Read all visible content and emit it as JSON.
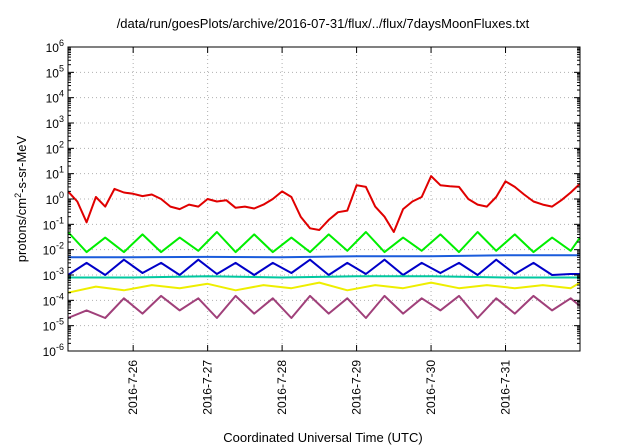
{
  "chart_data": {
    "type": "line",
    "title": "/data/run/goesPlots/archive/2016-07-31/flux/../flux/7daysMoonFluxes.txt",
    "xlabel": "Coordinated Universal Time (UTC)",
    "ylabel_parts": [
      "protons/cm",
      "2",
      "-s-sr-MeV"
    ],
    "y_scale": "log",
    "ylim": [
      1e-06,
      1000000.0
    ],
    "y_ticks": [
      {
        "base": "10",
        "exp": "-6",
        "value": 1e-06
      },
      {
        "base": "10",
        "exp": "-5",
        "value": 1e-05
      },
      {
        "base": "10",
        "exp": "-4",
        "value": 0.0001
      },
      {
        "base": "10",
        "exp": "-3",
        "value": 0.001
      },
      {
        "base": "10",
        "exp": "-2",
        "value": 0.01
      },
      {
        "base": "10",
        "exp": "-1",
        "value": 0.1
      },
      {
        "base": "10",
        "exp": "0",
        "value": 1
      },
      {
        "base": "10",
        "exp": "1",
        "value": 10
      },
      {
        "base": "10",
        "exp": "2",
        "value": 100
      },
      {
        "base": "10",
        "exp": "3",
        "value": 1000
      },
      {
        "base": "10",
        "exp": "4",
        "value": 10000
      },
      {
        "base": "10",
        "exp": "5",
        "value": 100000
      },
      {
        "base": "10",
        "exp": "6",
        "value": 1000000
      }
    ],
    "x_range": [
      "2016-07-25 03:00",
      "2016-08-01 00:00"
    ],
    "x_ticks": [
      {
        "label": "2016-7-26",
        "date": "2016-07-26 00:00"
      },
      {
        "label": "2016-7-27",
        "date": "2016-07-27 00:00"
      },
      {
        "label": "2016-7-28",
        "date": "2016-07-28 00:00"
      },
      {
        "label": "2016-7-29",
        "date": "2016-07-29 00:00"
      },
      {
        "label": "2016-7-30",
        "date": "2016-07-30 00:00"
      },
      {
        "label": "2016-7-31",
        "date": "2016-07-31 00:00"
      }
    ],
    "grid": true,
    "legend": "none",
    "series": [
      {
        "color": "#e00000",
        "x": [
          "2016-07-25 03:00",
          "2016-07-25 06:00",
          "2016-07-25 09:00",
          "2016-07-25 12:00",
          "2016-07-25 15:00",
          "2016-07-25 18:00",
          "2016-07-25 21:00",
          "2016-07-26 00:00",
          "2016-07-26 03:00",
          "2016-07-26 06:00",
          "2016-07-26 09:00",
          "2016-07-26 12:00",
          "2016-07-26 15:00",
          "2016-07-26 18:00",
          "2016-07-26 21:00",
          "2016-07-27 00:00",
          "2016-07-27 03:00",
          "2016-07-27 06:00",
          "2016-07-27 09:00",
          "2016-07-27 12:00",
          "2016-07-27 15:00",
          "2016-07-27 18:00",
          "2016-07-27 21:00",
          "2016-07-28 00:00",
          "2016-07-28 03:00",
          "2016-07-28 06:00",
          "2016-07-28 09:00",
          "2016-07-28 12:00",
          "2016-07-28 15:00",
          "2016-07-28 18:00",
          "2016-07-28 21:00",
          "2016-07-29 00:00",
          "2016-07-29 03:00",
          "2016-07-29 06:00",
          "2016-07-29 09:00",
          "2016-07-29 12:00",
          "2016-07-29 15:00",
          "2016-07-29 18:00",
          "2016-07-29 21:00",
          "2016-07-30 00:00",
          "2016-07-30 03:00",
          "2016-07-30 06:00",
          "2016-07-30 09:00",
          "2016-07-30 12:00",
          "2016-07-30 15:00",
          "2016-07-30 18:00",
          "2016-07-30 21:00",
          "2016-07-31 00:00",
          "2016-07-31 03:00",
          "2016-07-31 06:00",
          "2016-07-31 09:00",
          "2016-07-31 12:00",
          "2016-07-31 15:00",
          "2016-07-31 18:00",
          "2016-07-31 21:00",
          "2016-08-01 00:00"
        ],
        "values": [
          2.0,
          0.8,
          0.12,
          1.2,
          0.5,
          2.5,
          1.8,
          1.6,
          1.3,
          1.5,
          1.0,
          0.5,
          0.4,
          0.6,
          0.5,
          1.0,
          0.8,
          0.9,
          0.45,
          0.5,
          0.42,
          0.6,
          1.0,
          2.0,
          1.2,
          0.2,
          0.07,
          0.06,
          0.15,
          0.3,
          0.35,
          3.5,
          3.0,
          0.5,
          0.2,
          0.05,
          0.4,
          0.8,
          1.2,
          8.0,
          3.5,
          3.2,
          3.0,
          1.0,
          0.6,
          0.5,
          1.2,
          5.0,
          3.0,
          1.5,
          0.8,
          0.6,
          0.5,
          0.9,
          1.8,
          4.0
        ]
      },
      {
        "color": "#00ee00",
        "x": [
          "2016-07-25 03:00",
          "2016-07-25 09:00",
          "2016-07-25 15:00",
          "2016-07-25 21:00",
          "2016-07-26 03:00",
          "2016-07-26 09:00",
          "2016-07-26 15:00",
          "2016-07-26 21:00",
          "2016-07-27 03:00",
          "2016-07-27 09:00",
          "2016-07-27 15:00",
          "2016-07-27 21:00",
          "2016-07-28 03:00",
          "2016-07-28 09:00",
          "2016-07-28 15:00",
          "2016-07-28 21:00",
          "2016-07-29 03:00",
          "2016-07-29 09:00",
          "2016-07-29 15:00",
          "2016-07-29 21:00",
          "2016-07-30 03:00",
          "2016-07-30 09:00",
          "2016-07-30 15:00",
          "2016-07-30 21:00",
          "2016-07-31 03:00",
          "2016-07-31 09:00",
          "2016-07-31 15:00",
          "2016-07-31 21:00",
          "2016-08-01 00:00"
        ],
        "values": [
          0.05,
          0.008,
          0.03,
          0.008,
          0.04,
          0.008,
          0.03,
          0.009,
          0.05,
          0.008,
          0.04,
          0.008,
          0.03,
          0.008,
          0.04,
          0.009,
          0.05,
          0.008,
          0.03,
          0.009,
          0.04,
          0.008,
          0.05,
          0.009,
          0.04,
          0.008,
          0.03,
          0.009,
          0.03
        ]
      },
      {
        "color": "#1a5cdc",
        "x": [
          "2016-07-25 03:00",
          "2016-07-26 00:00",
          "2016-07-27 00:00",
          "2016-07-28 00:00",
          "2016-07-29 00:00",
          "2016-07-30 00:00",
          "2016-07-31 00:00",
          "2016-08-01 00:00"
        ],
        "values": [
          0.005,
          0.005,
          0.0052,
          0.005,
          0.0055,
          0.0055,
          0.006,
          0.006
        ]
      },
      {
        "color": "#0000c8",
        "x": [
          "2016-07-25 03:00",
          "2016-07-25 09:00",
          "2016-07-25 15:00",
          "2016-07-25 21:00",
          "2016-07-26 03:00",
          "2016-07-26 09:00",
          "2016-07-26 15:00",
          "2016-07-26 21:00",
          "2016-07-27 03:00",
          "2016-07-27 09:00",
          "2016-07-27 15:00",
          "2016-07-27 21:00",
          "2016-07-28 03:00",
          "2016-07-28 09:00",
          "2016-07-28 15:00",
          "2016-07-28 21:00",
          "2016-07-29 03:00",
          "2016-07-29 09:00",
          "2016-07-29 15:00",
          "2016-07-29 21:00",
          "2016-07-30 03:00",
          "2016-07-30 09:00",
          "2016-07-30 15:00",
          "2016-07-30 21:00",
          "2016-07-31 03:00",
          "2016-07-31 09:00",
          "2016-07-31 15:00",
          "2016-07-31 21:00",
          "2016-08-01 00:00"
        ],
        "values": [
          0.001,
          0.003,
          0.001,
          0.004,
          0.0012,
          0.003,
          0.001,
          0.004,
          0.0011,
          0.003,
          0.001,
          0.003,
          0.0012,
          0.004,
          0.001,
          0.003,
          0.0011,
          0.004,
          0.001,
          0.003,
          0.0012,
          0.003,
          0.001,
          0.004,
          0.0011,
          0.003,
          0.001,
          0.0011,
          0.0011
        ]
      },
      {
        "color": "#00c8a0",
        "x": [
          "2016-07-25 03:00",
          "2016-07-26 00:00",
          "2016-07-27 00:00",
          "2016-07-28 00:00",
          "2016-07-29 00:00",
          "2016-07-30 00:00",
          "2016-07-31 00:00",
          "2016-08-01 00:00"
        ],
        "values": [
          0.0008,
          0.0008,
          0.0009,
          0.0008,
          0.0009,
          0.0009,
          0.0008,
          0.0008
        ]
      },
      {
        "color": "#eeee00",
        "x": [
          "2016-07-25 03:00",
          "2016-07-25 12:00",
          "2016-07-25 21:00",
          "2016-07-26 06:00",
          "2016-07-26 15:00",
          "2016-07-27 00:00",
          "2016-07-27 09:00",
          "2016-07-27 18:00",
          "2016-07-28 03:00",
          "2016-07-28 12:00",
          "2016-07-28 21:00",
          "2016-07-29 06:00",
          "2016-07-29 15:00",
          "2016-07-30 00:00",
          "2016-07-30 09:00",
          "2016-07-30 18:00",
          "2016-07-31 03:00",
          "2016-07-31 12:00",
          "2016-07-31 21:00",
          "2016-08-01 00:00"
        ],
        "values": [
          0.0002,
          0.00035,
          0.00025,
          0.0004,
          0.0003,
          0.00045,
          0.00025,
          0.0004,
          0.0003,
          0.0005,
          0.00025,
          0.0004,
          0.0003,
          0.0005,
          0.0003,
          0.0004,
          0.0003,
          0.0004,
          0.0003,
          0.0005
        ]
      },
      {
        "color": "#a0407a",
        "x": [
          "2016-07-25 03:00",
          "2016-07-25 09:00",
          "2016-07-25 15:00",
          "2016-07-25 21:00",
          "2016-07-26 03:00",
          "2016-07-26 09:00",
          "2016-07-26 15:00",
          "2016-07-26 21:00",
          "2016-07-27 03:00",
          "2016-07-27 09:00",
          "2016-07-27 15:00",
          "2016-07-27 21:00",
          "2016-07-28 03:00",
          "2016-07-28 09:00",
          "2016-07-28 15:00",
          "2016-07-28 21:00",
          "2016-07-29 03:00",
          "2016-07-29 09:00",
          "2016-07-29 15:00",
          "2016-07-29 21:00",
          "2016-07-30 03:00",
          "2016-07-30 09:00",
          "2016-07-30 15:00",
          "2016-07-30 21:00",
          "2016-07-31 03:00",
          "2016-07-31 09:00",
          "2016-07-31 15:00",
          "2016-07-31 21:00",
          "2016-08-01 00:00"
        ],
        "values": [
          2e-05,
          4e-05,
          2e-05,
          0.00012,
          3e-05,
          0.00015,
          4e-05,
          0.00012,
          2e-05,
          0.00015,
          3e-05,
          0.00012,
          2e-05,
          0.00015,
          3e-05,
          0.00012,
          2e-05,
          0.00015,
          3e-05,
          0.00012,
          4e-05,
          0.00015,
          2e-05,
          0.00012,
          3e-05,
          0.00015,
          4e-05,
          0.00012,
          6e-05
        ]
      }
    ]
  }
}
